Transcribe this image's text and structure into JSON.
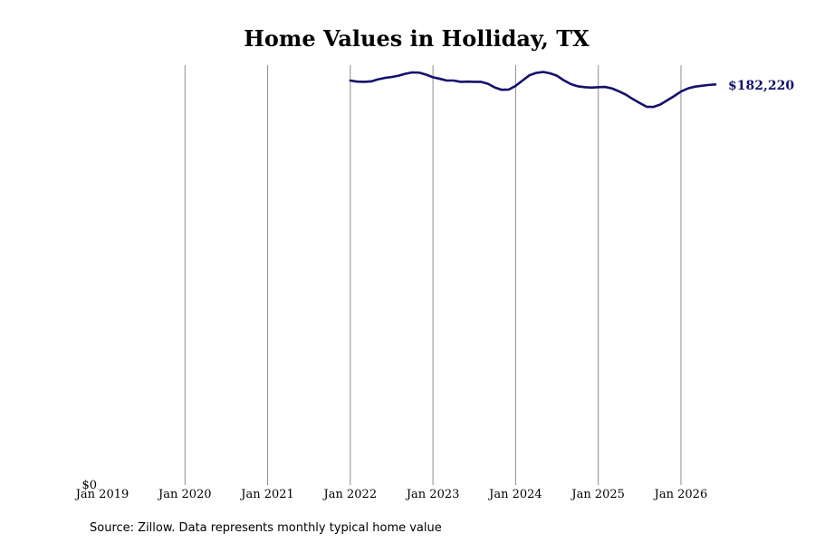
{
  "chart_data": {
    "type": "line",
    "title": "Home Values in Holliday, TX",
    "xlabel": "",
    "ylabel": "",
    "x_ticks": [
      "Jan 2019",
      "Jan 2020",
      "Jan 2021",
      "Jan 2022",
      "Jan 2023",
      "Jan 2024",
      "Jan 2025",
      "Jan 2026"
    ],
    "y_ticks": [
      {
        "value": 0,
        "label": "$0"
      }
    ],
    "xlim": [
      "2019-01",
      "2026-06"
    ],
    "ylim": [
      0,
      191000
    ],
    "grid": "vertical",
    "legend": "none",
    "end_label": "$182,220",
    "line_color": "#12126b",
    "series": [
      {
        "x": [
          "2022-01",
          "2022-02",
          "2022-03",
          "2022-04",
          "2022-05",
          "2022-06",
          "2022-07",
          "2022-08",
          "2022-09",
          "2022-10",
          "2022-11",
          "2022-12",
          "2023-01",
          "2023-02",
          "2023-03",
          "2023-04",
          "2023-05",
          "2023-06",
          "2023-07",
          "2023-08",
          "2023-09",
          "2023-10",
          "2023-11",
          "2023-12",
          "2024-01",
          "2024-02",
          "2024-03",
          "2024-04",
          "2024-05",
          "2024-06",
          "2024-07",
          "2024-08",
          "2024-09",
          "2024-10",
          "2024-11",
          "2024-12",
          "2025-01",
          "2025-02",
          "2025-03",
          "2025-04",
          "2025-05",
          "2025-06",
          "2025-07",
          "2025-08",
          "2025-09",
          "2025-10",
          "2025-11",
          "2025-12",
          "2026-01",
          "2026-02",
          "2026-03",
          "2026-04",
          "2026-05",
          "2026-06"
        ],
        "values": [
          184000,
          183500,
          183400,
          183600,
          184500,
          185200,
          185600,
          186200,
          187100,
          187700,
          187600,
          186700,
          185500,
          184800,
          184000,
          184000,
          183400,
          183500,
          183400,
          183400,
          182500,
          180800,
          179800,
          179900,
          181600,
          184000,
          186400,
          187500,
          187900,
          187300,
          186200,
          184100,
          182400,
          181400,
          181000,
          180800,
          181000,
          181100,
          180400,
          179100,
          177600,
          175600,
          173800,
          172100,
          172000,
          173100,
          175000,
          176900,
          179000,
          180400,
          181200,
          181600,
          182000,
          182220
        ]
      }
    ]
  },
  "source_text": "Source: Zillow. Data represents monthly typical home value"
}
